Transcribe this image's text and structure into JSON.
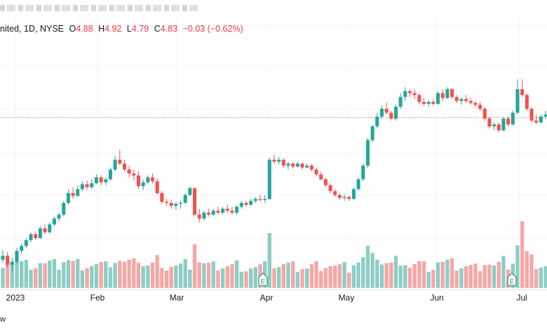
{
  "legend": {
    "name": "nited, 1D, NYSE",
    "open_label": "O",
    "open": "4.88",
    "high_label": "H",
    "high": "4.92",
    "low_label": "L",
    "low": "4.79",
    "close_label": "C",
    "close": "4.83",
    "change": "−0.03 (−0.62%)"
  },
  "footer": {
    "text": "w"
  },
  "colors": {
    "up": "#26a69a",
    "down": "#ef5350",
    "up_volume": "#8ecdc6",
    "down_volume": "#f5a7a6",
    "last_price_line": "#ef5350",
    "grid": "#f0f3fa"
  },
  "chart_data": {
    "type": "candlestick",
    "symbol_exchange": "NYSE",
    "interval": "1D",
    "last_price": 4.83,
    "price_range_estimated": [
      3.2,
      5.6
    ],
    "x_tick_labels": [
      "2023",
      "Feb",
      "Mar",
      "Apr",
      "May",
      "Jun",
      "Jul"
    ],
    "earnings_markers": [
      {
        "label": "E",
        "near_date": "2023-03-31"
      },
      {
        "label": "E",
        "near_date": "2023-06-29"
      }
    ],
    "y_axis_visible": false,
    "grid": true,
    "candles": [
      [
        3.38,
        3.48,
        3.35,
        3.42
      ],
      [
        3.42,
        3.46,
        3.3,
        3.33
      ],
      [
        3.33,
        3.4,
        3.26,
        3.36
      ],
      [
        3.36,
        3.5,
        3.34,
        3.47
      ],
      [
        3.47,
        3.55,
        3.44,
        3.52
      ],
      [
        3.52,
        3.6,
        3.5,
        3.58
      ],
      [
        3.58,
        3.66,
        3.56,
        3.64
      ],
      [
        3.64,
        3.67,
        3.58,
        3.6
      ],
      [
        3.6,
        3.72,
        3.59,
        3.7
      ],
      [
        3.7,
        3.74,
        3.64,
        3.66
      ],
      [
        3.66,
        3.76,
        3.65,
        3.74
      ],
      [
        3.74,
        3.82,
        3.72,
        3.8
      ],
      [
        3.8,
        3.86,
        3.77,
        3.84
      ],
      [
        3.84,
        3.98,
        3.82,
        3.96
      ],
      [
        3.96,
        4.1,
        3.94,
        4.06
      ],
      [
        4.06,
        4.12,
        4.0,
        4.03
      ],
      [
        4.03,
        4.14,
        4.02,
        4.1
      ],
      [
        4.1,
        4.18,
        4.08,
        4.15
      ],
      [
        4.15,
        4.19,
        4.09,
        4.12
      ],
      [
        4.12,
        4.2,
        4.1,
        4.16
      ],
      [
        4.16,
        4.25,
        4.15,
        4.22
      ],
      [
        4.22,
        4.24,
        4.14,
        4.17
      ],
      [
        4.17,
        4.22,
        4.14,
        4.2
      ],
      [
        4.2,
        4.32,
        4.19,
        4.3
      ],
      [
        4.3,
        4.44,
        4.28,
        4.4
      ],
      [
        4.4,
        4.5,
        4.34,
        4.36
      ],
      [
        4.36,
        4.4,
        4.28,
        4.3
      ],
      [
        4.3,
        4.34,
        4.22,
        4.26
      ],
      [
        4.26,
        4.3,
        4.19,
        4.24
      ],
      [
        4.24,
        4.28,
        4.1,
        4.13
      ],
      [
        4.13,
        4.2,
        4.09,
        4.17
      ],
      [
        4.17,
        4.24,
        4.15,
        4.22
      ],
      [
        4.22,
        4.26,
        4.16,
        4.18
      ],
      [
        4.18,
        4.21,
        4.04,
        4.06
      ],
      [
        4.06,
        4.08,
        3.95,
        3.97
      ],
      [
        3.97,
        4.0,
        3.93,
        3.96
      ],
      [
        3.96,
        3.99,
        3.9,
        3.93
      ],
      [
        3.93,
        3.97,
        3.89,
        3.95
      ],
      [
        3.95,
        3.98,
        3.9,
        3.96
      ],
      [
        3.96,
        4.06,
        3.95,
        4.04
      ],
      [
        4.04,
        4.13,
        4.03,
        4.11
      ],
      [
        4.11,
        4.11,
        3.82,
        3.84
      ],
      [
        3.84,
        3.9,
        3.76,
        3.8
      ],
      [
        3.8,
        3.88,
        3.78,
        3.86
      ],
      [
        3.86,
        3.9,
        3.82,
        3.84
      ],
      [
        3.84,
        3.9,
        3.83,
        3.88
      ],
      [
        3.88,
        3.92,
        3.84,
        3.86
      ],
      [
        3.86,
        3.92,
        3.84,
        3.9
      ],
      [
        3.9,
        3.94,
        3.86,
        3.88
      ],
      [
        3.88,
        3.92,
        3.84,
        3.86
      ],
      [
        3.86,
        3.94,
        3.84,
        3.92
      ],
      [
        3.92,
        3.98,
        3.9,
        3.96
      ],
      [
        3.96,
        3.98,
        3.92,
        3.94
      ],
      [
        3.94,
        4.0,
        3.93,
        3.98
      ],
      [
        3.98,
        4.02,
        3.96,
        4.0
      ],
      [
        4.0,
        4.04,
        3.97,
        3.99
      ],
      [
        3.99,
        4.04,
        3.96,
        4.0
      ],
      [
        4.0,
        4.42,
        3.99,
        4.4
      ],
      [
        4.4,
        4.45,
        4.36,
        4.38
      ],
      [
        4.38,
        4.43,
        4.35,
        4.4
      ],
      [
        4.4,
        4.41,
        4.32,
        4.34
      ],
      [
        4.34,
        4.38,
        4.3,
        4.36
      ],
      [
        4.36,
        4.38,
        4.31,
        4.33
      ],
      [
        4.33,
        4.38,
        4.32,
        4.36
      ],
      [
        4.36,
        4.37,
        4.3,
        4.32
      ],
      [
        4.32,
        4.36,
        4.31,
        4.34
      ],
      [
        4.34,
        4.36,
        4.28,
        4.3
      ],
      [
        4.3,
        4.32,
        4.23,
        4.25
      ],
      [
        4.25,
        4.28,
        4.19,
        4.2
      ],
      [
        4.2,
        4.22,
        4.12,
        4.14
      ],
      [
        4.14,
        4.16,
        4.06,
        4.08
      ],
      [
        4.08,
        4.1,
        4.02,
        4.04
      ],
      [
        4.04,
        4.06,
        3.99,
        4.01
      ],
      [
        4.01,
        4.05,
        3.98,
        4.02
      ],
      [
        4.02,
        4.04,
        3.98,
        4.0
      ],
      [
        4.0,
        4.12,
        3.99,
        4.1
      ],
      [
        4.1,
        4.22,
        4.08,
        4.2
      ],
      [
        4.2,
        4.36,
        4.18,
        4.34
      ],
      [
        4.34,
        4.62,
        4.32,
        4.6
      ],
      [
        4.6,
        4.76,
        4.58,
        4.74
      ],
      [
        4.74,
        4.88,
        4.72,
        4.84
      ],
      [
        4.84,
        4.95,
        4.82,
        4.92
      ],
      [
        4.92,
        4.98,
        4.86,
        4.88
      ],
      [
        4.88,
        4.9,
        4.8,
        4.82
      ],
      [
        4.82,
        4.96,
        4.8,
        4.94
      ],
      [
        4.94,
        5.08,
        4.92,
        5.04
      ],
      [
        5.04,
        5.14,
        5.0,
        5.1
      ],
      [
        5.1,
        5.12,
        5.04,
        5.08
      ],
      [
        5.08,
        5.12,
        5.02,
        5.06
      ],
      [
        5.06,
        5.08,
        4.97,
        4.99
      ],
      [
        4.99,
        5.03,
        4.95,
        4.97
      ],
      [
        4.97,
        5.01,
        4.94,
        4.99
      ],
      [
        4.99,
        5.02,
        4.95,
        4.97
      ],
      [
        4.97,
        5.1,
        4.96,
        5.08
      ],
      [
        5.08,
        5.12,
        5.0,
        5.03
      ],
      [
        5.03,
        5.14,
        5.02,
        5.12
      ],
      [
        5.12,
        5.13,
        5.02,
        5.04
      ],
      [
        5.04,
        5.06,
        4.98,
        5.0
      ],
      [
        5.0,
        5.04,
        4.96,
        5.02
      ],
      [
        5.02,
        5.06,
        4.98,
        5.0
      ],
      [
        5.0,
        5.03,
        4.96,
        4.98
      ],
      [
        4.98,
        5.0,
        4.94,
        4.96
      ],
      [
        4.96,
        4.99,
        4.9,
        4.92
      ],
      [
        4.92,
        4.94,
        4.8,
        4.82
      ],
      [
        4.82,
        4.84,
        4.72,
        4.74
      ],
      [
        4.74,
        4.78,
        4.7,
        4.76
      ],
      [
        4.76,
        4.78,
        4.68,
        4.7
      ],
      [
        4.7,
        4.84,
        4.69,
        4.82
      ],
      [
        4.82,
        4.84,
        4.74,
        4.76
      ],
      [
        4.76,
        4.9,
        4.75,
        4.88
      ],
      [
        4.88,
        5.22,
        4.86,
        5.12
      ],
      [
        5.12,
        5.22,
        5.04,
        5.06
      ],
      [
        5.06,
        5.08,
        4.9,
        4.92
      ],
      [
        4.92,
        4.94,
        4.78,
        4.8
      ],
      [
        4.8,
        4.86,
        4.76,
        4.78
      ],
      [
        4.78,
        4.86,
        4.77,
        4.84
      ],
      [
        4.84,
        4.9,
        4.82,
        4.86
      ]
    ],
    "volume_up_down_pattern_only": true
  }
}
